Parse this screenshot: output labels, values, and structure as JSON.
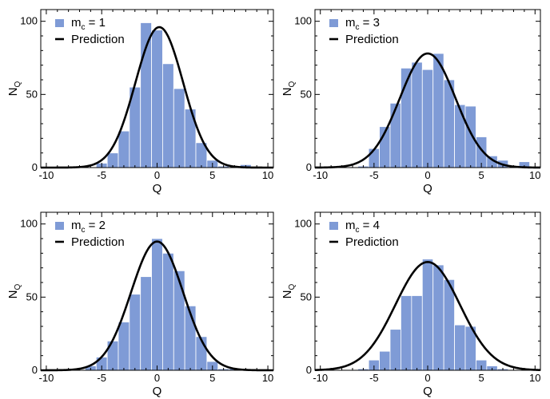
{
  "colors": {
    "bar": "#7f9bd6",
    "prediction": "#000000",
    "axis": "#000000",
    "bar_edge": "#ffffff"
  },
  "chart_data": [
    {
      "type": "bar",
      "legend": {
        "position": "top-left",
        "entries": [
          {
            "label_main": "m",
            "label_sub": "c",
            "label_rest": " = 1"
          },
          {
            "label": "Prediction"
          }
        ]
      },
      "xlabel": "Q",
      "ylabel_main": "N",
      "ylabel_sub": "Q",
      "xlim": [
        -10.5,
        10.5
      ],
      "ylim": [
        0,
        108
      ],
      "xticks": [
        -10,
        -5,
        0,
        5,
        10
      ],
      "xtick_labels": [
        "-10",
        "-5",
        "0",
        "5",
        "10"
      ],
      "yticks": [
        0,
        50,
        100
      ],
      "ytick_labels": [
        "0",
        "50",
        "100"
      ],
      "series": [
        {
          "bins": [
            [
              -9.5,
              -8.5
            ],
            [
              -8.5,
              -7.5
            ],
            [
              -7.5,
              -6.5
            ],
            [
              -6.5,
              -5.5
            ],
            [
              -5.5,
              -4.5
            ],
            [
              -4.5,
              -3.5
            ],
            [
              -3.5,
              -2.5
            ],
            [
              -2.5,
              -1.5
            ],
            [
              -1.5,
              -0.5
            ],
            [
              -0.5,
              0.5
            ],
            [
              0.5,
              1.5
            ],
            [
              1.5,
              2.5
            ],
            [
              2.5,
              3.5
            ],
            [
              3.5,
              4.5
            ],
            [
              4.5,
              5.5
            ],
            [
              5.5,
              6.5
            ],
            [
              6.5,
              7.5
            ],
            [
              7.5,
              8.5
            ]
          ],
          "values": [
            0,
            0,
            0,
            0,
            3,
            10,
            25,
            55,
            99,
            94,
            71,
            54,
            40,
            17,
            5,
            1,
            0,
            2
          ]
        },
        {
          "type": "line",
          "mean": 0.2,
          "sd": 2.15,
          "peak": 96
        }
      ]
    },
    {
      "type": "bar",
      "legend": {
        "position": "top-left",
        "entries": [
          {
            "label_main": "m",
            "label_sub": "c",
            "label_rest": " = 3"
          },
          {
            "label": "Prediction"
          }
        ]
      },
      "xlabel": "Q",
      "ylabel_main": "N",
      "ylabel_sub": "Q",
      "xlim": [
        -10.5,
        10.5
      ],
      "ylim": [
        0,
        108
      ],
      "xticks": [
        -10,
        -5,
        0,
        5,
        10
      ],
      "xtick_labels": [
        "-10",
        "-5",
        "0",
        "5",
        "10"
      ],
      "yticks": [
        0,
        50,
        100
      ],
      "ytick_labels": [
        "0",
        "50",
        "100"
      ],
      "series": [
        {
          "bins": [
            [
              -9.5,
              -8.5
            ],
            [
              -8.5,
              -7.5
            ],
            [
              -7.5,
              -6.5
            ],
            [
              -6.5,
              -5.5
            ],
            [
              -5.5,
              -4.5
            ],
            [
              -4.5,
              -3.5
            ],
            [
              -3.5,
              -2.5
            ],
            [
              -2.5,
              -1.5
            ],
            [
              -1.5,
              -0.5
            ],
            [
              -0.5,
              0.5
            ],
            [
              0.5,
              1.5
            ],
            [
              1.5,
              2.5
            ],
            [
              2.5,
              3.5
            ],
            [
              3.5,
              4.5
            ],
            [
              4.5,
              5.5
            ],
            [
              5.5,
              6.5
            ],
            [
              6.5,
              7.5
            ],
            [
              7.5,
              8.5
            ],
            [
              8.5,
              9.5
            ]
          ],
          "values": [
            0,
            0,
            0,
            1,
            13,
            28,
            44,
            68,
            72,
            67,
            78,
            60,
            43,
            42,
            21,
            8,
            5,
            0,
            4
          ]
        },
        {
          "type": "line",
          "mean": 0.0,
          "sd": 2.6,
          "peak": 78
        }
      ]
    },
    {
      "type": "bar",
      "legend": {
        "position": "top-left",
        "entries": [
          {
            "label_main": "m",
            "label_sub": "c",
            "label_rest": " = 2"
          },
          {
            "label": "Prediction"
          }
        ]
      },
      "xlabel": "Q",
      "ylabel_main": "N",
      "ylabel_sub": "Q",
      "xlim": [
        -10.5,
        10.5
      ],
      "ylim": [
        0,
        108
      ],
      "xticks": [
        -10,
        -5,
        0,
        5,
        10
      ],
      "xtick_labels": [
        "-10",
        "-5",
        "0",
        "5",
        "10"
      ],
      "yticks": [
        0,
        50,
        100
      ],
      "ytick_labels": [
        "0",
        "50",
        "100"
      ],
      "series": [
        {
          "bins": [
            [
              -9.5,
              -8.5
            ],
            [
              -8.5,
              -7.5
            ],
            [
              -7.5,
              -6.5
            ],
            [
              -6.5,
              -5.5
            ],
            [
              -5.5,
              -4.5
            ],
            [
              -4.5,
              -3.5
            ],
            [
              -3.5,
              -2.5
            ],
            [
              -2.5,
              -1.5
            ],
            [
              -1.5,
              -0.5
            ],
            [
              -0.5,
              0.5
            ],
            [
              0.5,
              1.5
            ],
            [
              1.5,
              2.5
            ],
            [
              2.5,
              3.5
            ],
            [
              3.5,
              4.5
            ],
            [
              4.5,
              5.5
            ],
            [
              5.5,
              6.5
            ],
            [
              6.5,
              7.5
            ]
          ],
          "values": [
            0,
            0,
            0,
            3,
            9,
            20,
            33,
            52,
            64,
            90,
            80,
            68,
            44,
            23,
            6,
            1,
            1
          ]
        },
        {
          "type": "line",
          "mean": 0.0,
          "sd": 2.35,
          "peak": 88
        }
      ]
    },
    {
      "type": "bar",
      "legend": {
        "position": "top-left",
        "entries": [
          {
            "label_main": "m",
            "label_sub": "c",
            "label_rest": " = 4"
          },
          {
            "label": "Prediction"
          }
        ]
      },
      "xlabel": "Q",
      "ylabel_main": "N",
      "ylabel_sub": "Q",
      "xlim": [
        -10.5,
        10.5
      ],
      "ylim": [
        0,
        108
      ],
      "xticks": [
        -10,
        -5,
        0,
        5,
        10
      ],
      "xtick_labels": [
        "-10",
        "-5",
        "0",
        "5",
        "10"
      ],
      "yticks": [
        0,
        50,
        100
      ],
      "ytick_labels": [
        "0",
        "50",
        "100"
      ],
      "series": [
        {
          "bins": [
            [
              -9.5,
              -8.5
            ],
            [
              -8.5,
              -7.5
            ],
            [
              -7.5,
              -6.5
            ],
            [
              -6.5,
              -5.5
            ],
            [
              -5.5,
              -4.5
            ],
            [
              -4.5,
              -3.5
            ],
            [
              -3.5,
              -2.5
            ],
            [
              -2.5,
              -1.5
            ],
            [
              -1.5,
              -0.5
            ],
            [
              -0.5,
              0.5
            ],
            [
              0.5,
              1.5
            ],
            [
              1.5,
              2.5
            ],
            [
              2.5,
              3.5
            ],
            [
              3.5,
              4.5
            ],
            [
              4.5,
              5.5
            ],
            [
              5.5,
              6.5
            ],
            [
              6.5,
              7.5
            ],
            [
              7.5,
              8.5
            ]
          ],
          "values": [
            0,
            0,
            0,
            1,
            7,
            13,
            28,
            51,
            51,
            76,
            72,
            62,
            31,
            30,
            7,
            3,
            1,
            0
          ]
        },
        {
          "type": "line",
          "mean": 0.0,
          "sd": 3.0,
          "peak": 74
        }
      ]
    }
  ]
}
